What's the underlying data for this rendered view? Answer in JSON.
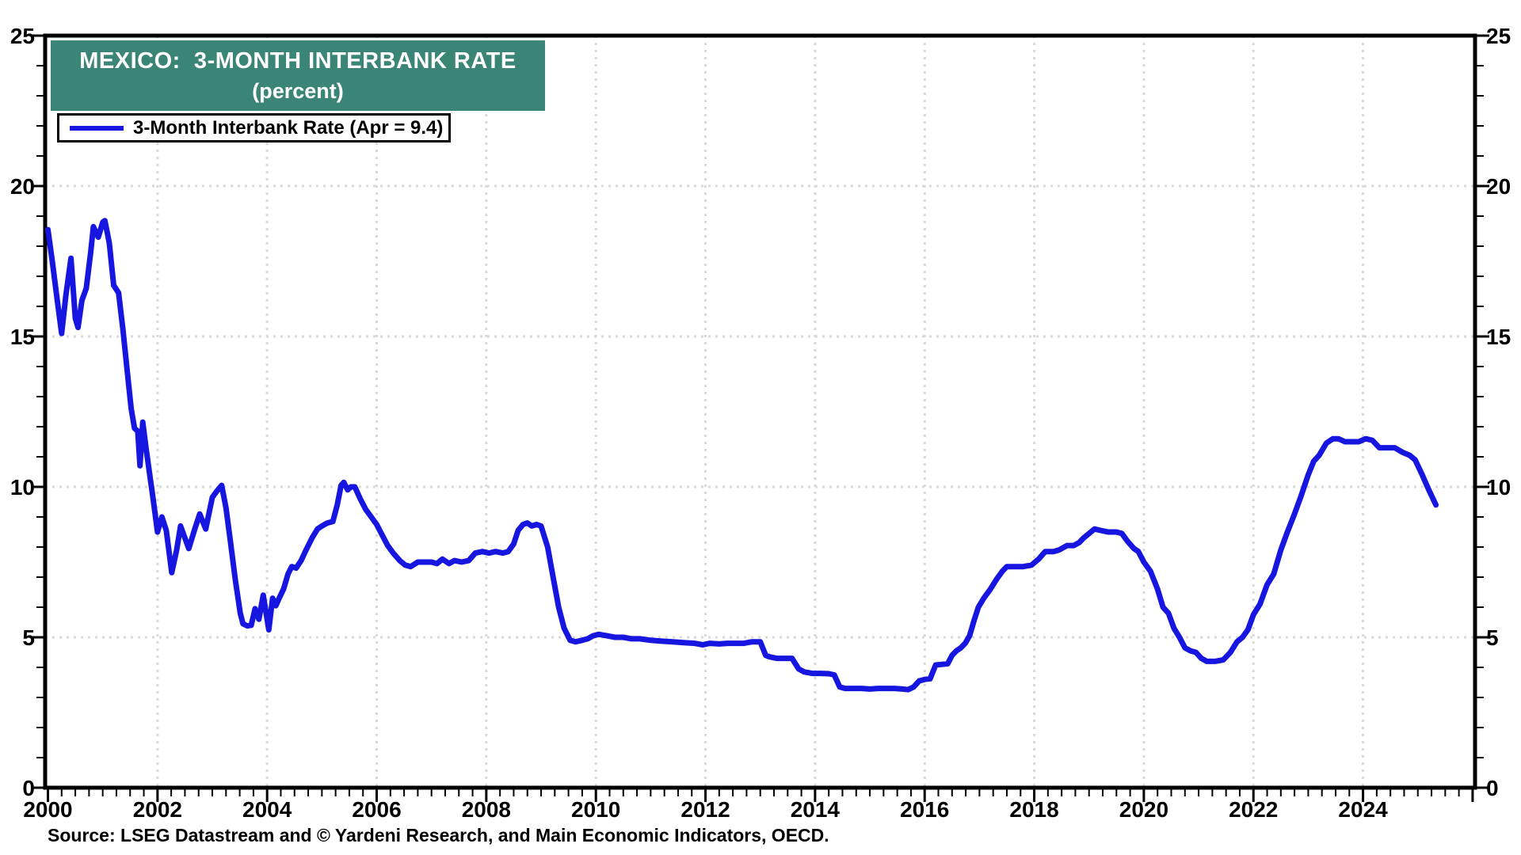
{
  "page": {
    "background": "#ffffff"
  },
  "title_box": {
    "line1": "MEXICO:  3-MONTH INTERBANK RATE",
    "line2": "(percent)",
    "bg_color": "#3B8577",
    "text_color": "#ffffff"
  },
  "legend": {
    "label": "3-Month Interbank Rate (Apr = 9.4)",
    "line_color": "#1616E0"
  },
  "source_line": "Source: LSEG Datastream and © Yardeni Research, and Main Economic Indicators, OECD.",
  "axis": {
    "tick_color": "#000000",
    "label_color": "#000000",
    "grid_color": "#d9d9d9",
    "frame_color": "#000000"
  },
  "chart_data": {
    "type": "line",
    "title": "MEXICO:  3-MONTH INTERBANK RATE",
    "subtitle": "(percent)",
    "xlabel": "",
    "ylabel": "percent",
    "ylim": [
      0,
      25
    ],
    "x_domain": [
      2000,
      2026.05
    ],
    "y_ticks": [
      0,
      5,
      10,
      15,
      20,
      25
    ],
    "x_tick_years": [
      2000,
      2002,
      2004,
      2006,
      2008,
      2010,
      2012,
      2014,
      2016,
      2018,
      2020,
      2022,
      2024
    ],
    "grid_years": [
      2002,
      2004,
      2006,
      2008,
      2010,
      2012,
      2014,
      2016,
      2018,
      2020,
      2022,
      2024
    ],
    "grid_style": "dotted",
    "legend_position": "top-left",
    "last_point_note": "Apr = 9.4",
    "series": [
      {
        "name": "3-Month Interbank Rate (Apr = 9.4)",
        "color": "#1616E0",
        "points": [
          [
            2000.0,
            18.55
          ],
          [
            2000.08,
            17.5
          ],
          [
            2000.17,
            16.2
          ],
          [
            2000.25,
            15.1
          ],
          [
            2000.33,
            16.4
          ],
          [
            2000.42,
            17.6
          ],
          [
            2000.5,
            15.6
          ],
          [
            2000.55,
            15.3
          ],
          [
            2000.62,
            16.2
          ],
          [
            2000.7,
            16.6
          ],
          [
            2000.78,
            17.8
          ],
          [
            2000.83,
            18.65
          ],
          [
            2000.92,
            18.3
          ],
          [
            2001.0,
            18.8
          ],
          [
            2001.04,
            18.85
          ],
          [
            2001.12,
            18.1
          ],
          [
            2001.2,
            16.7
          ],
          [
            2001.29,
            16.45
          ],
          [
            2001.37,
            15.2
          ],
          [
            2001.45,
            13.8
          ],
          [
            2001.52,
            12.6
          ],
          [
            2001.58,
            11.95
          ],
          [
            2001.64,
            11.85
          ],
          [
            2001.68,
            10.7
          ],
          [
            2001.73,
            12.15
          ],
          [
            2001.79,
            11.3
          ],
          [
            2001.85,
            10.5
          ],
          [
            2001.92,
            9.6
          ],
          [
            2002.0,
            8.5
          ],
          [
            2002.08,
            9.0
          ],
          [
            2002.16,
            8.55
          ],
          [
            2002.26,
            7.15
          ],
          [
            2002.35,
            7.9
          ],
          [
            2002.42,
            8.7
          ],
          [
            2002.5,
            8.3
          ],
          [
            2002.57,
            7.95
          ],
          [
            2002.68,
            8.6
          ],
          [
            2002.77,
            9.1
          ],
          [
            2002.88,
            8.6
          ],
          [
            2003.0,
            9.65
          ],
          [
            2003.08,
            9.85
          ],
          [
            2003.17,
            10.05
          ],
          [
            2003.25,
            9.3
          ],
          [
            2003.33,
            8.2
          ],
          [
            2003.42,
            6.9
          ],
          [
            2003.51,
            5.8
          ],
          [
            2003.56,
            5.45
          ],
          [
            2003.64,
            5.38
          ],
          [
            2003.71,
            5.4
          ],
          [
            2003.78,
            5.95
          ],
          [
            2003.85,
            5.6
          ],
          [
            2003.93,
            6.4
          ],
          [
            2004.03,
            5.25
          ],
          [
            2004.1,
            6.3
          ],
          [
            2004.16,
            6.05
          ],
          [
            2004.22,
            6.3
          ],
          [
            2004.3,
            6.6
          ],
          [
            2004.38,
            7.1
          ],
          [
            2004.45,
            7.35
          ],
          [
            2004.53,
            7.3
          ],
          [
            2004.62,
            7.55
          ],
          [
            2004.71,
            7.9
          ],
          [
            2004.82,
            8.3
          ],
          [
            2004.92,
            8.6
          ],
          [
            2005.0,
            8.7
          ],
          [
            2005.1,
            8.8
          ],
          [
            2005.2,
            8.85
          ],
          [
            2005.28,
            9.4
          ],
          [
            2005.35,
            10.05
          ],
          [
            2005.4,
            10.15
          ],
          [
            2005.47,
            9.9
          ],
          [
            2005.53,
            10.0
          ],
          [
            2005.6,
            10.0
          ],
          [
            2005.7,
            9.6
          ],
          [
            2005.8,
            9.25
          ],
          [
            2005.9,
            9.0
          ],
          [
            2006.0,
            8.75
          ],
          [
            2006.1,
            8.4
          ],
          [
            2006.2,
            8.05
          ],
          [
            2006.3,
            7.8
          ],
          [
            2006.42,
            7.55
          ],
          [
            2006.52,
            7.4
          ],
          [
            2006.62,
            7.35
          ],
          [
            2006.75,
            7.5
          ],
          [
            2006.9,
            7.5
          ],
          [
            2007.0,
            7.5
          ],
          [
            2007.1,
            7.45
          ],
          [
            2007.2,
            7.6
          ],
          [
            2007.32,
            7.45
          ],
          [
            2007.42,
            7.55
          ],
          [
            2007.55,
            7.5
          ],
          [
            2007.68,
            7.55
          ],
          [
            2007.8,
            7.8
          ],
          [
            2007.93,
            7.85
          ],
          [
            2008.05,
            7.8
          ],
          [
            2008.17,
            7.85
          ],
          [
            2008.3,
            7.8
          ],
          [
            2008.4,
            7.85
          ],
          [
            2008.5,
            8.1
          ],
          [
            2008.58,
            8.55
          ],
          [
            2008.67,
            8.75
          ],
          [
            2008.75,
            8.8
          ],
          [
            2008.83,
            8.7
          ],
          [
            2008.92,
            8.75
          ],
          [
            2009.0,
            8.7
          ],
          [
            2009.12,
            8.0
          ],
          [
            2009.22,
            7.0
          ],
          [
            2009.32,
            6.0
          ],
          [
            2009.42,
            5.3
          ],
          [
            2009.53,
            4.9
          ],
          [
            2009.63,
            4.85
          ],
          [
            2009.75,
            4.9
          ],
          [
            2009.85,
            4.95
          ],
          [
            2009.95,
            5.05
          ],
          [
            2010.05,
            5.1
          ],
          [
            2010.2,
            5.05
          ],
          [
            2010.35,
            5.0
          ],
          [
            2010.5,
            5.0
          ],
          [
            2010.65,
            4.95
          ],
          [
            2010.8,
            4.95
          ],
          [
            2011.0,
            4.9
          ],
          [
            2011.2,
            4.87
          ],
          [
            2011.4,
            4.85
          ],
          [
            2011.6,
            4.82
          ],
          [
            2011.8,
            4.8
          ],
          [
            2011.95,
            4.75
          ],
          [
            2012.08,
            4.8
          ],
          [
            2012.25,
            4.78
          ],
          [
            2012.4,
            4.8
          ],
          [
            2012.55,
            4.8
          ],
          [
            2012.7,
            4.8
          ],
          [
            2012.85,
            4.85
          ],
          [
            2013.0,
            4.85
          ],
          [
            2013.1,
            4.4
          ],
          [
            2013.17,
            4.35
          ],
          [
            2013.3,
            4.3
          ],
          [
            2013.45,
            4.3
          ],
          [
            2013.58,
            4.3
          ],
          [
            2013.7,
            3.95
          ],
          [
            2013.8,
            3.85
          ],
          [
            2013.95,
            3.8
          ],
          [
            2014.1,
            3.8
          ],
          [
            2014.25,
            3.79
          ],
          [
            2014.35,
            3.75
          ],
          [
            2014.45,
            3.35
          ],
          [
            2014.55,
            3.3
          ],
          [
            2014.7,
            3.3
          ],
          [
            2014.85,
            3.3
          ],
          [
            2015.0,
            3.28
          ],
          [
            2015.15,
            3.3
          ],
          [
            2015.3,
            3.3
          ],
          [
            2015.45,
            3.3
          ],
          [
            2015.6,
            3.28
          ],
          [
            2015.7,
            3.26
          ],
          [
            2015.8,
            3.35
          ],
          [
            2015.9,
            3.55
          ],
          [
            2016.0,
            3.6
          ],
          [
            2016.1,
            3.62
          ],
          [
            2016.2,
            4.08
          ],
          [
            2016.32,
            4.1
          ],
          [
            2016.42,
            4.12
          ],
          [
            2016.5,
            4.4
          ],
          [
            2016.58,
            4.55
          ],
          [
            2016.66,
            4.65
          ],
          [
            2016.74,
            4.8
          ],
          [
            2016.82,
            5.05
          ],
          [
            2016.9,
            5.55
          ],
          [
            2016.98,
            6.0
          ],
          [
            2017.08,
            6.3
          ],
          [
            2017.2,
            6.6
          ],
          [
            2017.32,
            6.95
          ],
          [
            2017.42,
            7.2
          ],
          [
            2017.5,
            7.35
          ],
          [
            2017.65,
            7.35
          ],
          [
            2017.8,
            7.35
          ],
          [
            2017.95,
            7.4
          ],
          [
            2018.08,
            7.6
          ],
          [
            2018.2,
            7.85
          ],
          [
            2018.35,
            7.85
          ],
          [
            2018.45,
            7.9
          ],
          [
            2018.6,
            8.05
          ],
          [
            2018.72,
            8.05
          ],
          [
            2018.82,
            8.15
          ],
          [
            2018.9,
            8.3
          ],
          [
            2019.0,
            8.45
          ],
          [
            2019.1,
            8.6
          ],
          [
            2019.22,
            8.55
          ],
          [
            2019.35,
            8.5
          ],
          [
            2019.5,
            8.5
          ],
          [
            2019.6,
            8.45
          ],
          [
            2019.7,
            8.2
          ],
          [
            2019.82,
            7.95
          ],
          [
            2019.9,
            7.85
          ],
          [
            2020.0,
            7.5
          ],
          [
            2020.12,
            7.2
          ],
          [
            2020.25,
            6.6
          ],
          [
            2020.35,
            6.0
          ],
          [
            2020.45,
            5.8
          ],
          [
            2020.55,
            5.3
          ],
          [
            2020.65,
            5.0
          ],
          [
            2020.75,
            4.65
          ],
          [
            2020.85,
            4.55
          ],
          [
            2020.95,
            4.5
          ],
          [
            2021.05,
            4.3
          ],
          [
            2021.15,
            4.2
          ],
          [
            2021.3,
            4.2
          ],
          [
            2021.45,
            4.25
          ],
          [
            2021.58,
            4.5
          ],
          [
            2021.7,
            4.85
          ],
          [
            2021.8,
            5.0
          ],
          [
            2021.9,
            5.25
          ],
          [
            2022.0,
            5.75
          ],
          [
            2022.12,
            6.1
          ],
          [
            2022.25,
            6.75
          ],
          [
            2022.37,
            7.1
          ],
          [
            2022.5,
            7.9
          ],
          [
            2022.62,
            8.5
          ],
          [
            2022.75,
            9.1
          ],
          [
            2022.87,
            9.7
          ],
          [
            2023.0,
            10.4
          ],
          [
            2023.1,
            10.85
          ],
          [
            2023.2,
            11.05
          ],
          [
            2023.33,
            11.45
          ],
          [
            2023.45,
            11.6
          ],
          [
            2023.55,
            11.6
          ],
          [
            2023.67,
            11.5
          ],
          [
            2023.8,
            11.5
          ],
          [
            2023.92,
            11.5
          ],
          [
            2024.05,
            11.6
          ],
          [
            2024.17,
            11.55
          ],
          [
            2024.3,
            11.3
          ],
          [
            2024.45,
            11.3
          ],
          [
            2024.58,
            11.3
          ],
          [
            2024.72,
            11.15
          ],
          [
            2024.85,
            11.05
          ],
          [
            2024.95,
            10.9
          ],
          [
            2025.08,
            10.4
          ],
          [
            2025.2,
            9.9
          ],
          [
            2025.33,
            9.4
          ]
        ]
      }
    ]
  }
}
